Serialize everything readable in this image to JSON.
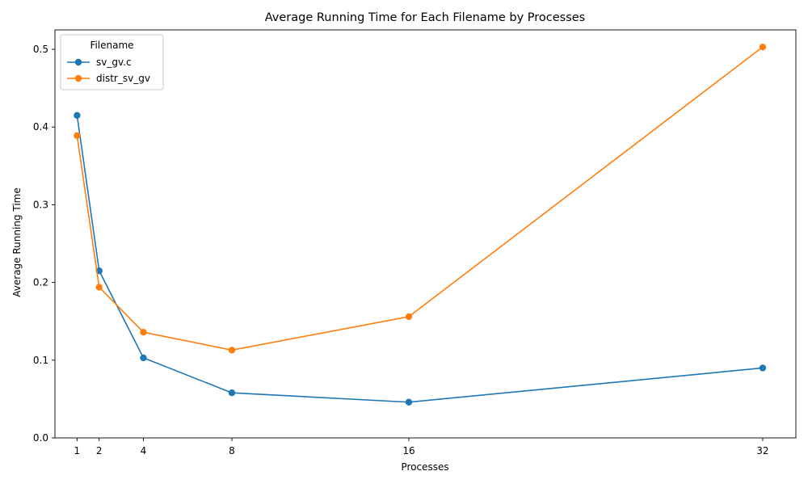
{
  "chart_data": {
    "type": "line",
    "title": "Average Running Time for Each Filename by Processes",
    "xlabel": "Processes",
    "ylabel": "Average Running Time",
    "x": [
      1,
      2,
      4,
      8,
      16,
      32
    ],
    "x_tick_labels": [
      "1",
      "2",
      "4",
      "8",
      "16",
      "32"
    ],
    "y_ticks": [
      0.0,
      0.1,
      0.2,
      0.3,
      0.4,
      0.5
    ],
    "y_tick_labels": [
      "0.0",
      "0.1",
      "0.2",
      "0.3",
      "0.4",
      "0.5"
    ],
    "xlim": [
      0,
      33.5
    ],
    "ylim": [
      0.0,
      0.525
    ],
    "grid": false,
    "legend": {
      "title": "Filename",
      "placement": "top-left"
    },
    "series": [
      {
        "name": "sv_gv.c",
        "color": "#1f77b4",
        "values": [
          0.415,
          0.215,
          0.103,
          0.058,
          0.046,
          0.09
        ]
      },
      {
        "name": "distr_sv_gv",
        "color": "#ff7f0e",
        "values": [
          0.389,
          0.194,
          0.136,
          0.113,
          0.156,
          0.503
        ]
      }
    ]
  }
}
